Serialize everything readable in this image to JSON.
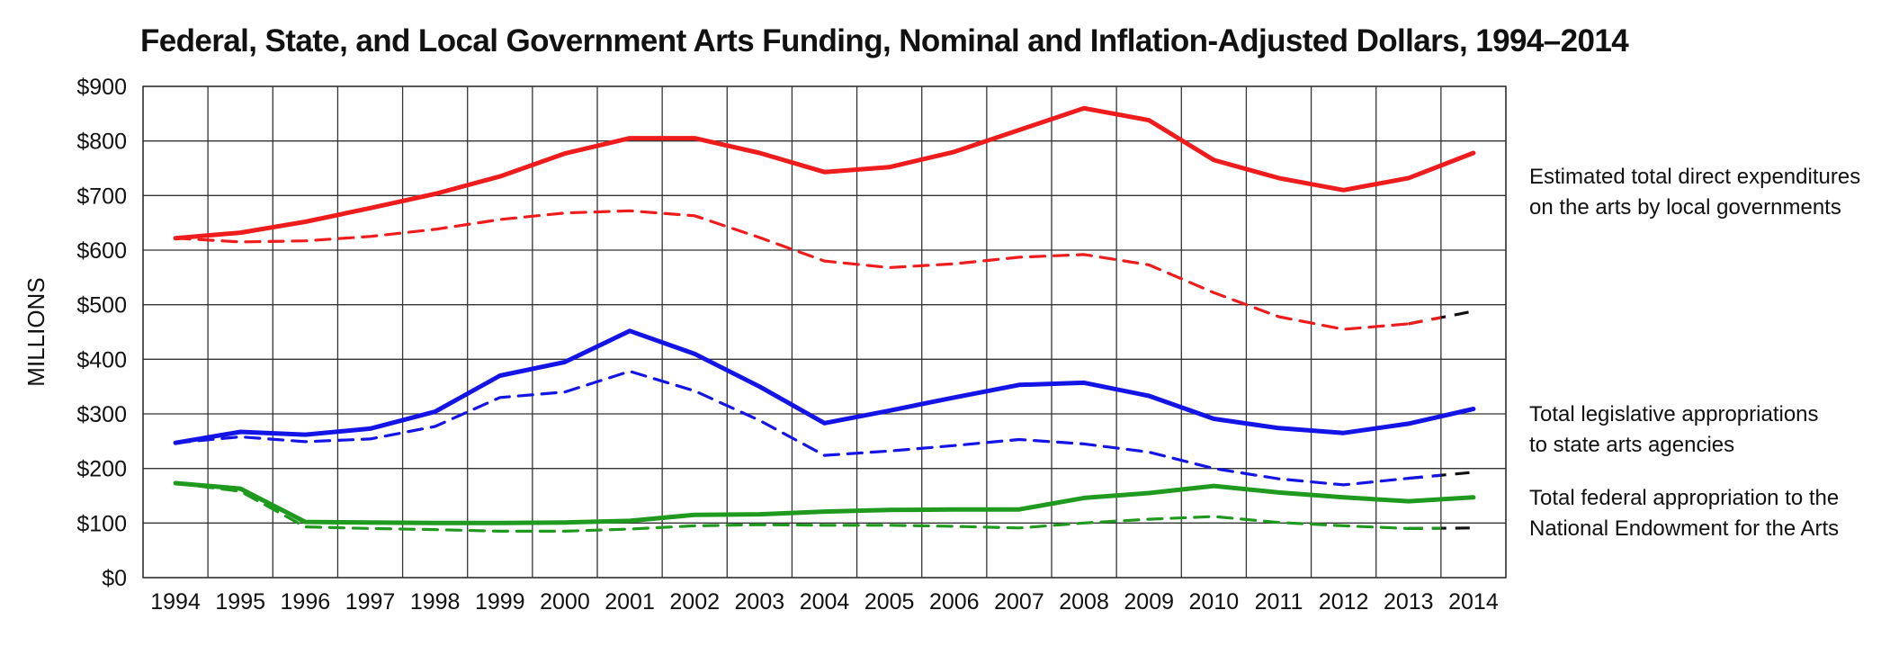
{
  "chart_data": {
    "type": "line",
    "title": "Federal, State, and Local Government Arts Funding, Nominal and Inflation-Adjusted Dollars, 1994–2014",
    "ylabel": "MILLIONS",
    "xlabel": "",
    "ylim": [
      0,
      900
    ],
    "yticks": [
      0,
      100,
      200,
      300,
      400,
      500,
      600,
      700,
      800,
      900
    ],
    "ytick_labels": [
      "$0",
      "$100",
      "$200",
      "$300",
      "$400",
      "$500",
      "$600",
      "$700",
      "$800",
      "$900"
    ],
    "x": [
      "1994",
      "1995",
      "1996",
      "1997",
      "1998",
      "1999",
      "2000",
      "2001",
      "2002",
      "2003",
      "2004",
      "2005",
      "2006",
      "2007",
      "2008",
      "2009",
      "2010",
      "2011",
      "2012",
      "2013",
      "2014"
    ],
    "grid": true,
    "series": [
      {
        "group": "local",
        "style": "solid",
        "color": "#ee1c1c",
        "values": [
          622,
          632,
          652,
          677,
          703,
          735,
          777,
          805,
          805,
          778,
          743,
          752,
          780,
          820,
          860,
          838,
          765,
          732,
          710,
          732,
          778
        ]
      },
      {
        "group": "local",
        "style": "dashed",
        "color": "#ee1c1c",
        "values": [
          622,
          615,
          617,
          625,
          638,
          656,
          668,
          672,
          663,
          623,
          580,
          568,
          575,
          587,
          592,
          573,
          522,
          478,
          455,
          465,
          488
        ]
      },
      {
        "group": "state",
        "style": "solid",
        "color": "#1414e6",
        "values": [
          247,
          267,
          262,
          273,
          304,
          370,
          395,
          452,
          410,
          350,
          283,
          306,
          330,
          353,
          357,
          333,
          291,
          274,
          265,
          282,
          309
        ]
      },
      {
        "group": "state",
        "style": "dashed",
        "color": "#1414e6",
        "values": [
          247,
          258,
          249,
          254,
          277,
          330,
          340,
          378,
          342,
          288,
          224,
          232,
          242,
          253,
          245,
          230,
          200,
          181,
          170,
          182,
          193
        ]
      },
      {
        "group": "federal",
        "style": "solid",
        "color": "#1f9a1f",
        "values": [
          173,
          163,
          102,
          101,
          100,
          100,
          101,
          104,
          115,
          116,
          121,
          124,
          125,
          125,
          146,
          155,
          168,
          156,
          147,
          140,
          147
        ]
      },
      {
        "group": "federal",
        "style": "dashed",
        "color": "#1f9a1f",
        "values": [
          173,
          158,
          93,
          90,
          88,
          85,
          85,
          89,
          95,
          97,
          96,
          96,
          94,
          91,
          100,
          107,
          112,
          101,
          95,
          90,
          91
        ]
      }
    ],
    "legend": [
      {
        "group": "local",
        "lines": [
          "Estimated total direct expenditures",
          "on the arts by local governments"
        ]
      },
      {
        "group": "state",
        "lines": [
          "Total legislative appropriations",
          "to state arts agencies"
        ]
      },
      {
        "group": "federal",
        "lines": [
          "Total federal appropriation to the",
          "National Endowment for the Arts"
        ]
      }
    ],
    "legend_placement": "right",
    "colors": {
      "grid": "#333333",
      "end_segment": "#111111"
    }
  }
}
